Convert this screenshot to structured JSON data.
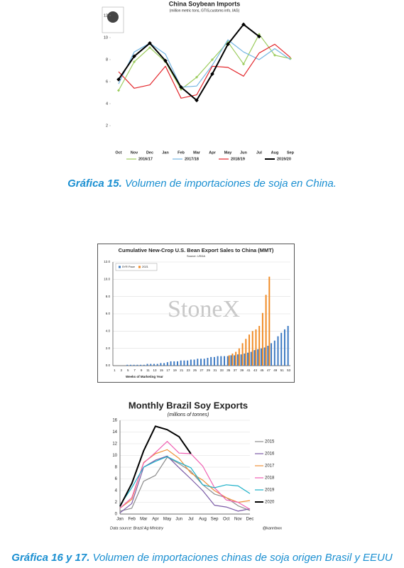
{
  "chart_data": [
    {
      "type": "line",
      "title": "China Soybean Imports",
      "subtitle": "(million metric tons, GTIS,customs info, IAG)",
      "categories": [
        "Oct",
        "Nov",
        "Dec",
        "Jan",
        "Feb",
        "Mar",
        "Apr",
        "May",
        "Jun",
        "Jul",
        "Aug",
        "Sep"
      ],
      "series": [
        {
          "name": "2016/17",
          "color": "#9ccc5e",
          "values": [
            5.2,
            7.8,
            9.1,
            7.8,
            5.3,
            6.4,
            8.0,
            9.6,
            7.6,
            10.3,
            8.4,
            8.1
          ]
        },
        {
          "name": "2017/18",
          "color": "#74b6e2",
          "values": [
            5.8,
            8.7,
            9.5,
            8.5,
            5.5,
            5.6,
            7.5,
            9.8,
            8.7,
            8.0,
            9.0,
            8.0
          ]
        },
        {
          "name": "2018/19",
          "color": "#e3262b",
          "values": [
            6.9,
            5.4,
            5.7,
            7.4,
            4.5,
            4.8,
            7.4,
            7.3,
            6.5,
            8.6,
            9.4,
            8.2
          ]
        },
        {
          "name": "2019/20",
          "color": "#000000",
          "values": [
            6.2,
            8.3,
            9.5,
            7.9,
            5.5,
            4.3,
            6.7,
            9.4,
            11.2,
            10.1,
            null,
            null
          ]
        }
      ],
      "ylim": [
        0,
        12
      ],
      "yticks": [
        2,
        4,
        6,
        8,
        10,
        12
      ],
      "grid": false,
      "legend": "bottom"
    },
    {
      "type": "bar",
      "title": "Cumulative New-Crop U.S. Bean Export Sales to China (MMT)",
      "subtitle": "Source: USDA",
      "watermark": "StoneX",
      "xlabel": "Weeks of Marketing Year",
      "categories": [
        "1",
        null,
        "3",
        null,
        "5",
        null,
        "7",
        null,
        "9",
        null,
        "11",
        null,
        "13",
        null,
        "15",
        null,
        "17",
        null,
        "19",
        null,
        "21",
        null,
        "23",
        null,
        "25",
        null,
        "27",
        null,
        "29",
        null,
        "31",
        null,
        "33",
        null,
        "35",
        null,
        "37",
        null,
        "39",
        null,
        "41",
        null,
        "43",
        null,
        "45",
        null,
        "47",
        null,
        "49",
        null,
        "51",
        null,
        "53"
      ],
      "series": [
        {
          "name": "5YR Pace",
          "color": "#3a78c2",
          "values": [
            0,
            0,
            0,
            0,
            0.1,
            0.1,
            0.1,
            0.1,
            0.1,
            0.1,
            0.2,
            0.2,
            0.2,
            0.2,
            0.3,
            0.3,
            0.4,
            0.5,
            0.5,
            0.5,
            0.6,
            0.6,
            0.6,
            0.7,
            0.7,
            0.8,
            0.8,
            0.8,
            0.9,
            1.0,
            1.0,
            1.1,
            1.1,
            1.1,
            1.1,
            1.2,
            1.2,
            1.3,
            1.3,
            1.4,
            1.5,
            1.6,
            1.8,
            1.9,
            2.0,
            2.1,
            2.3,
            2.6,
            2.9,
            3.4,
            3.8,
            4.2,
            4.6
          ]
        },
        {
          "name": "2021",
          "color": "#f08a24",
          "values": [
            null,
            null,
            null,
            null,
            null,
            null,
            null,
            null,
            null,
            null,
            null,
            null,
            null,
            null,
            null,
            null,
            null,
            null,
            null,
            null,
            null,
            null,
            null,
            null,
            null,
            null,
            null,
            null,
            null,
            null,
            null,
            null,
            null,
            null,
            1.2,
            1.4,
            1.6,
            2.0,
            2.6,
            3.1,
            3.6,
            4.0,
            4.2,
            4.6,
            6.1,
            8.2,
            10.3,
            null,
            null,
            null,
            null,
            null,
            null
          ]
        }
      ],
      "ylim": [
        0,
        12
      ],
      "yticks": [
        {
          "value": 0,
          "label": "0.0"
        },
        {
          "value": 2,
          "label": "2.0"
        },
        {
          "value": 4,
          "label": "4.0"
        },
        {
          "value": 6,
          "label": "6.0"
        },
        {
          "value": 8,
          "label": "8.0"
        },
        {
          "value": 10,
          "label": "10.0"
        },
        {
          "value": 12,
          "label": "12.0"
        }
      ],
      "grid": true,
      "legend": "upper left"
    },
    {
      "type": "line",
      "title": "Monthly Brazil Soy Exports",
      "subtitle": "(millions of tonnes)",
      "source": "Data source: Brazil Ag Ministry",
      "credit": "@kannbwx",
      "categories": [
        "Jan",
        "Feb",
        "Mar",
        "Apr",
        "May",
        "Jun",
        "Jul",
        "Aug",
        "Sep",
        "Oct",
        "Nov",
        "Dec"
      ],
      "series": [
        {
          "name": "2015",
          "color": "#8c8c8c",
          "values": [
            0.5,
            1.0,
            5.6,
            6.6,
            9.7,
            8.6,
            7.3,
            5.0,
            3.4,
            2.8,
            1.4,
            0.6
          ]
        },
        {
          "name": "2016",
          "color": "#7a5aa6",
          "values": [
            0.2,
            1.8,
            8.0,
            9.2,
            9.9,
            7.9,
            6.0,
            4.0,
            1.5,
            1.2,
            0.5,
            0.9
          ]
        },
        {
          "name": "2017",
          "color": "#f0913a",
          "values": [
            1.0,
            2.5,
            8.8,
            10.3,
            11.0,
            9.5,
            7.0,
            5.8,
            4.0,
            2.8,
            2.0,
            2.3
          ]
        },
        {
          "name": "2018",
          "color": "#ef5fb2",
          "values": [
            1.0,
            2.8,
            8.7,
            10.5,
            12.4,
            10.4,
            10.3,
            8.2,
            4.5,
            2.4,
            2.0,
            0.8
          ]
        },
        {
          "name": "2019",
          "color": "#1ab0c8",
          "values": [
            1.5,
            4.5,
            8.0,
            9.0,
            9.8,
            8.8,
            7.9,
            5.0,
            4.5,
            5.0,
            4.8,
            3.5
          ]
        },
        {
          "name": "2020",
          "color": "#000000",
          "values": [
            1.3,
            5.2,
            10.8,
            15.0,
            14.4,
            13.2,
            10.3,
            null,
            null,
            null,
            null,
            null
          ]
        }
      ],
      "ylim": [
        0,
        16
      ],
      "yticks": [
        0,
        2,
        4,
        6,
        8,
        10,
        12,
        14,
        16
      ],
      "grid": true,
      "legend": "right"
    }
  ],
  "captions": [
    {
      "label": "Gráfica 15.",
      "text": "Volumen de importaciones de soja en China."
    },
    {
      "label": "Gráfica 16 y 17.",
      "text": "Volumen de importaciones chinas de soja origen Brasil y EEUU"
    }
  ]
}
